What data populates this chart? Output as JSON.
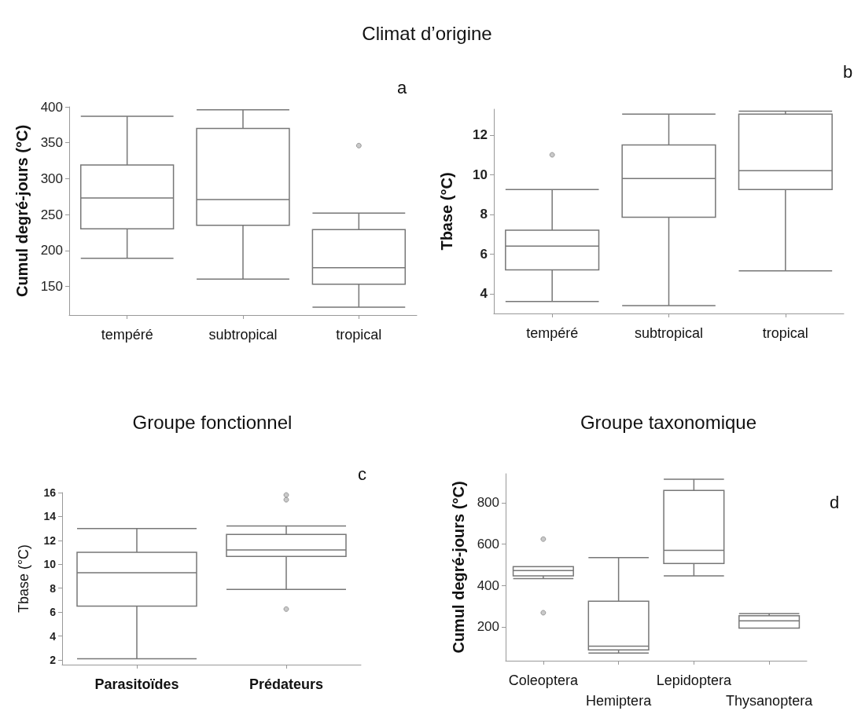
{
  "chart_data": [
    {
      "type": "box",
      "title": "Climat d’origine",
      "ylabel": "Cumul degré-jours (°C)",
      "annotations": [
        "a"
      ],
      "categories": [
        "tempéré",
        "subtropical",
        "tropical"
      ],
      "ylim": [
        110,
        400
      ],
      "yticks": [
        150,
        200,
        250,
        300,
        350,
        400
      ],
      "grid": false,
      "boxes": [
        {
          "low": 189,
          "q1": 230,
          "median": 273,
          "q3": 319,
          "high": 387
        },
        {
          "low": 160,
          "q1": 235,
          "median": 271,
          "q3": 370,
          "high": 396
        },
        {
          "low": 121,
          "q1": 153,
          "median": 176,
          "q3": 229,
          "high": 252,
          "outliers": [
            346
          ]
        }
      ]
    },
    {
      "type": "box",
      "ylabel": "Tbase (°C)",
      "annotations": [
        "b"
      ],
      "categories": [
        "tempéré",
        "subtropical",
        "tropical"
      ],
      "ylim": [
        3,
        13.3
      ],
      "yticks": [
        4,
        6,
        8,
        10,
        12
      ],
      "grid": false,
      "boxes": [
        {
          "low": 3.6,
          "q1": 5.2,
          "median": 6.4,
          "q3": 7.2,
          "high": 9.25,
          "outliers": [
            11.0
          ]
        },
        {
          "low": 3.4,
          "q1": 7.85,
          "median": 9.8,
          "q3": 11.5,
          "high": 13.05
        },
        {
          "low": 5.15,
          "q1": 9.25,
          "median": 10.2,
          "q3": 13.05,
          "high": 13.2
        }
      ]
    },
    {
      "type": "box",
      "title": "Groupe fonctionnel",
      "ylabel": "Tbase (°C)",
      "annotations": [
        "c"
      ],
      "categories": [
        "Parasitoïdes",
        "Prédateurs"
      ],
      "ylim": [
        1.6,
        16
      ],
      "yticks": [
        2,
        4,
        6,
        8,
        10,
        12,
        14,
        16
      ],
      "grid": false,
      "boxes": [
        {
          "low": 2.1,
          "q1": 6.5,
          "median": 9.3,
          "q3": 11.0,
          "high": 13.0
        },
        {
          "low": 7.9,
          "q1": 10.65,
          "median": 11.2,
          "q3": 12.5,
          "high": 13.2,
          "outliers": [
            15.8,
            15.4,
            6.25
          ]
        }
      ]
    },
    {
      "type": "box",
      "title": "Groupe taxonomique",
      "ylabel": "Cumul degré-jours (°C)",
      "annotations": [
        "d"
      ],
      "categories": [
        "Coleoptera",
        "Hemiptera",
        "Lepidoptera",
        "Thysanoptera"
      ],
      "ylim": [
        36,
        940
      ],
      "yticks": [
        200,
        400,
        600,
        800
      ],
      "grid": false,
      "boxes": [
        {
          "low": 433,
          "q1": 446,
          "median": 472,
          "q3": 491,
          "high": 491,
          "outliers": [
            624,
            268
          ]
        },
        {
          "low": 73,
          "q1": 88,
          "median": 106,
          "q3": 324,
          "high": 535
        },
        {
          "low": 446,
          "q1": 506,
          "median": 570,
          "q3": 859,
          "high": 913
        },
        {
          "low": 194,
          "q1": 194,
          "median": 229,
          "q3": 253,
          "high": 264
        }
      ]
    }
  ]
}
